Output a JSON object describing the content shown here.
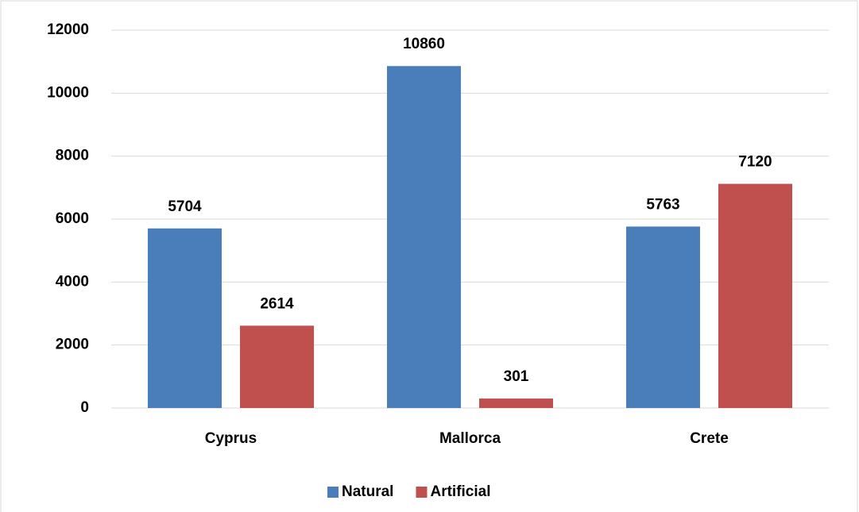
{
  "chart_data": {
    "type": "bar",
    "categories": [
      "Cyprus",
      "Mallorca",
      "Crete"
    ],
    "series": [
      {
        "name": "Natural",
        "color": "#4a7ebb",
        "values": [
          5704,
          10860,
          5763
        ]
      },
      {
        "name": "Artificial",
        "color": "#c0504d",
        "values": [
          2614,
          301,
          7120
        ]
      }
    ],
    "ylim": [
      0,
      12000
    ],
    "yticks": [
      0,
      2000,
      4000,
      6000,
      8000,
      10000,
      12000
    ],
    "grid": true,
    "legend": "bottom"
  }
}
